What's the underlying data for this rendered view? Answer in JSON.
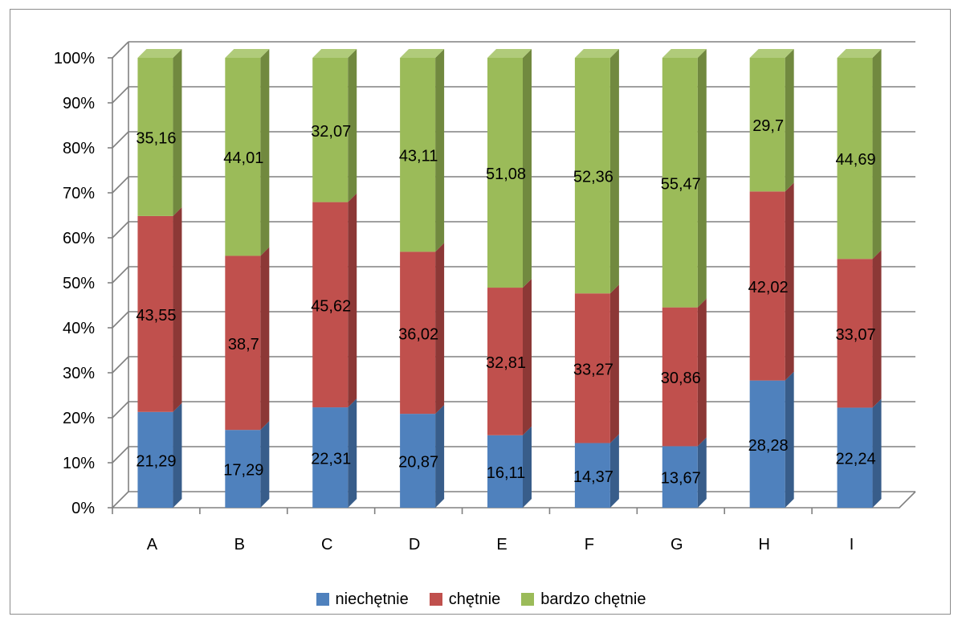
{
  "chart_data": {
    "type": "bar",
    "stacked": true,
    "stacked_percent": true,
    "three_d": true,
    "categories": [
      "A",
      "B",
      "C",
      "D",
      "E",
      "F",
      "G",
      "H",
      "I"
    ],
    "series": [
      {
        "name": "niechętnie",
        "color": "#4F81BD",
        "values": [
          21.29,
          17.29,
          22.31,
          20.87,
          16.11,
          14.37,
          13.67,
          28.28,
          22.24
        ],
        "labels": [
          "21,29",
          "17,29",
          "22,31",
          "20,87",
          "16,11",
          "14,37",
          "13,67",
          "28,28",
          "22,24"
        ]
      },
      {
        "name": "chętnie",
        "color": "#C0504D",
        "values": [
          43.55,
          38.7,
          45.62,
          36.02,
          32.81,
          33.27,
          30.86,
          42.02,
          33.07
        ],
        "labels": [
          "43,55",
          "38,7",
          "45,62",
          "36,02",
          "32,81",
          "33,27",
          "30,86",
          "42,02",
          "33,07"
        ]
      },
      {
        "name": "bardzo chętnie",
        "color": "#9BBB59",
        "values": [
          35.16,
          44.01,
          32.07,
          43.11,
          51.08,
          52.36,
          55.47,
          29.7,
          44.69
        ],
        "labels": [
          "35,16",
          "44,01",
          "32,07",
          "43,11",
          "51,08",
          "52,36",
          "55,47",
          "29,7",
          "44,69"
        ]
      }
    ],
    "y_ticks": [
      "0%",
      "10%",
      "20%",
      "30%",
      "40%",
      "50%",
      "60%",
      "70%",
      "80%",
      "90%",
      "100%"
    ],
    "ylim": [
      0,
      100
    ],
    "grid": true,
    "legend_position": "bottom"
  },
  "legend": {
    "items": [
      {
        "label": "niechętnie",
        "color": "#4F81BD"
      },
      {
        "label": "chętnie",
        "color": "#C0504D"
      },
      {
        "label": "bardzo chętnie",
        "color": "#9BBB59"
      }
    ]
  }
}
